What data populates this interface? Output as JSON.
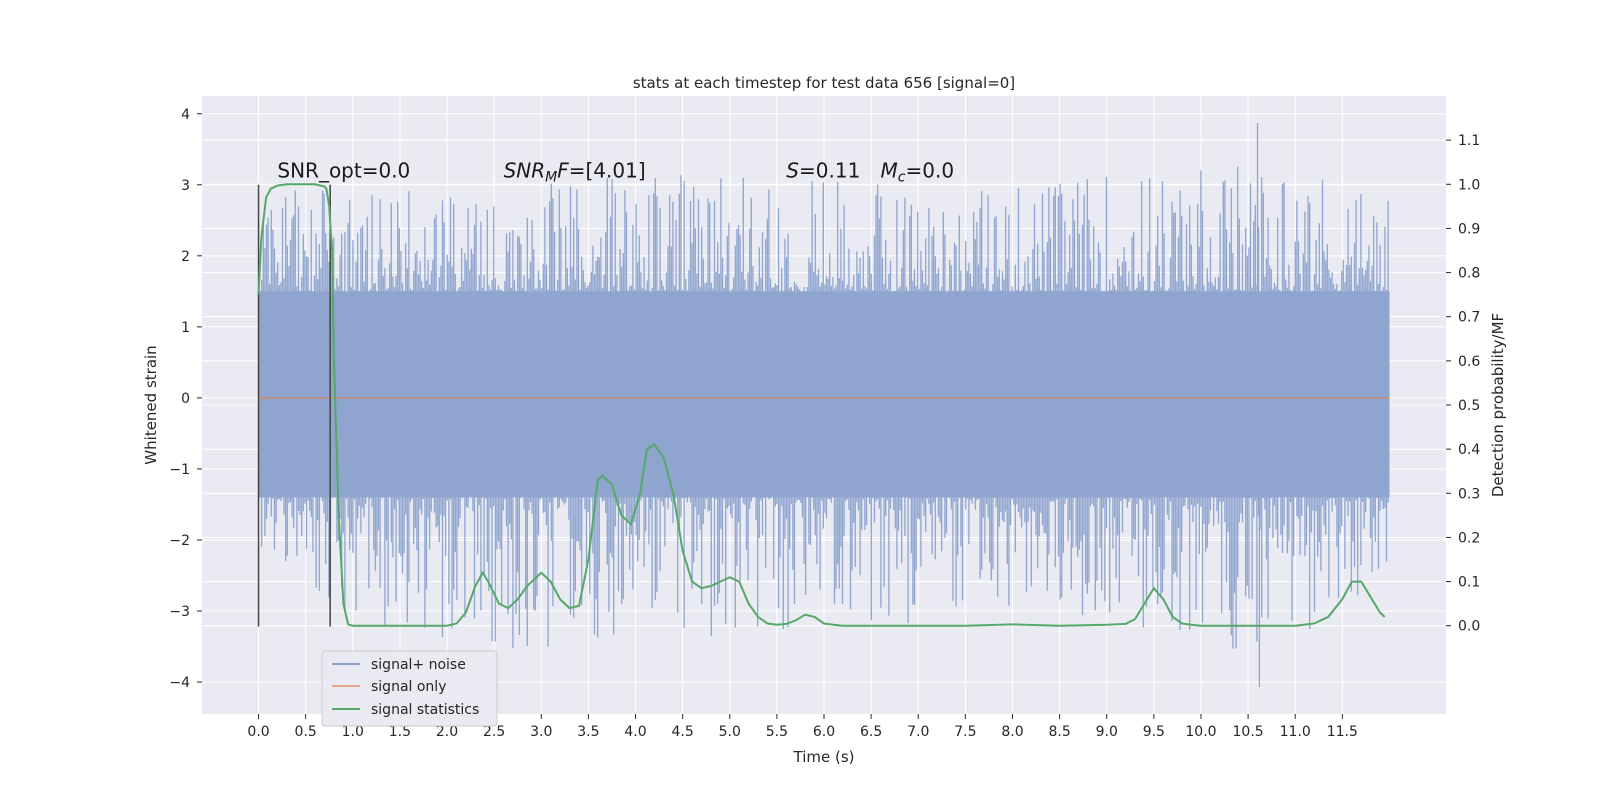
{
  "chart_data": {
    "type": "line",
    "title": "stats at each timestep for test data 656 [signal=0]",
    "xlabel": "Time (s)",
    "ylabel_left": "Whitened strain",
    "ylabel_right": "Detection probability/MF",
    "xlim": [
      -0.6,
      12.6
    ],
    "ylim_left": [
      -4.45,
      4.25
    ],
    "ylim_right": [
      -0.2,
      1.2
    ],
    "x_ticks": [
      "0.0",
      "0.5",
      "1.0",
      "1.5",
      "2.0",
      "2.5",
      "3.0",
      "3.5",
      "4.0",
      "4.5",
      "5.0",
      "5.5",
      "6.0",
      "6.5",
      "7.0",
      "7.5",
      "8.0",
      "8.5",
      "9.0",
      "9.5",
      "10.0",
      "10.5",
      "11.0",
      "11.5"
    ],
    "x_tick_values": [
      0,
      0.5,
      1,
      1.5,
      2,
      2.5,
      3,
      3.5,
      4,
      4.5,
      5,
      5.5,
      6,
      6.5,
      7,
      7.5,
      8,
      8.5,
      9,
      9.5,
      10,
      10.5,
      11,
      11.5
    ],
    "y_left_ticks": [
      "−4",
      "−3",
      "−2",
      "−1",
      "0",
      "1",
      "2",
      "3",
      "4"
    ],
    "y_left_tick_values": [
      -4,
      -3,
      -2,
      -1,
      0,
      1,
      2,
      3,
      4
    ],
    "y_right_ticks": [
      "0.0",
      "0.1",
      "0.2",
      "0.3",
      "0.4",
      "0.5",
      "0.6",
      "0.7",
      "0.8",
      "0.9",
      "1.0",
      "1.1"
    ],
    "y_right_tick_values": [
      0,
      0.1,
      0.2,
      0.3,
      0.4,
      0.5,
      0.6,
      0.7,
      0.8,
      0.9,
      1.0,
      1.1
    ],
    "grid": true,
    "legend_position": "lower-left",
    "series": [
      {
        "name": "signal+ noise",
        "axis": "left",
        "color": "#8fa5cf",
        "style": "dense noise band",
        "x_range": [
          0,
          12.0
        ],
        "typical_band": [
          -1.4,
          1.5
        ],
        "observed_max": 3.87,
        "observed_min": -4.07,
        "envelope": {
          "x": [
            0,
            1,
            2,
            3,
            4,
            5,
            6,
            7,
            8,
            9,
            10,
            11,
            12.0
          ],
          "upper": [
            3.0,
            3.0,
            3.0,
            3.1,
            3.2,
            3.1,
            3.2,
            3.0,
            3.0,
            3.2,
            3.3,
            3.4,
            2.9
          ],
          "lower": [
            -2.2,
            -3.1,
            -3.4,
            -3.6,
            -3.3,
            -3.4,
            -3.2,
            -3.2,
            -3.0,
            -3.2,
            -3.6,
            -3.5,
            -2.5
          ]
        }
      },
      {
        "name": "signal only",
        "axis": "left",
        "color": "#dd8452",
        "x": [
          0,
          12.0
        ],
        "y": [
          0,
          0
        ]
      },
      {
        "name": "signal statistics",
        "axis": "right",
        "color": "#55a868",
        "x": [
          0.0,
          0.03,
          0.08,
          0.13,
          0.2,
          0.3,
          0.4,
          0.5,
          0.6,
          0.7,
          0.72,
          0.75,
          0.78,
          0.8,
          0.85,
          0.9,
          0.95,
          1.0,
          1.2,
          1.5,
          1.8,
          2.0,
          2.1,
          2.2,
          2.3,
          2.38,
          2.45,
          2.55,
          2.65,
          2.75,
          2.85,
          2.95,
          3.0,
          3.1,
          3.2,
          3.3,
          3.4,
          3.5,
          3.6,
          3.65,
          3.75,
          3.85,
          3.95,
          4.05,
          4.12,
          4.2,
          4.3,
          4.4,
          4.5,
          4.6,
          4.7,
          4.8,
          4.9,
          5.0,
          5.1,
          5.2,
          5.3,
          5.4,
          5.5,
          5.6,
          5.7,
          5.8,
          5.9,
          6.0,
          6.1,
          6.2,
          6.5,
          7.0,
          7.5,
          8.0,
          8.5,
          9.0,
          9.2,
          9.3,
          9.4,
          9.5,
          9.6,
          9.7,
          9.8,
          9.9,
          10.0,
          10.5,
          11.0,
          11.2,
          11.35,
          11.5,
          11.6,
          11.7,
          11.8,
          11.9,
          11.95
        ],
        "y": [
          0.75,
          0.88,
          0.97,
          0.99,
          0.997,
          1.0,
          1.0,
          1.0,
          1.0,
          0.995,
          0.99,
          0.95,
          0.85,
          0.6,
          0.25,
          0.05,
          0.003,
          0.0,
          0.0,
          0.0,
          0.0,
          0.0,
          0.005,
          0.03,
          0.09,
          0.12,
          0.095,
          0.05,
          0.04,
          0.06,
          0.09,
          0.11,
          0.12,
          0.1,
          0.06,
          0.04,
          0.045,
          0.15,
          0.33,
          0.34,
          0.32,
          0.25,
          0.23,
          0.3,
          0.4,
          0.41,
          0.38,
          0.3,
          0.17,
          0.1,
          0.085,
          0.09,
          0.1,
          0.11,
          0.1,
          0.05,
          0.02,
          0.005,
          0.002,
          0.004,
          0.012,
          0.025,
          0.02,
          0.005,
          0.002,
          0.0,
          0.0,
          0.0,
          0.0,
          0.003,
          0.0,
          0.002,
          0.004,
          0.015,
          0.05,
          0.085,
          0.06,
          0.02,
          0.005,
          0.002,
          0.0,
          0.0,
          0.0,
          0.005,
          0.02,
          0.06,
          0.1,
          0.1,
          0.065,
          0.03,
          0.02
        ]
      }
    ],
    "vertical_markers": [
      {
        "x": 0.0,
        "y_from": -3.22,
        "y_to": 3.0,
        "color": "#444444"
      },
      {
        "x": 0.76,
        "y_from": -3.22,
        "y_to": 3.0,
        "color": "#444444"
      }
    ],
    "annotations": [
      {
        "id": "snr_opt",
        "plain": "SNR_opt=0.0",
        "x": 0.2,
        "y": 3.1
      },
      {
        "id": "snr_mf",
        "parts": [
          {
            "t": "SNR",
            "italic": true
          },
          {
            "t": "M",
            "italic": true,
            "sub": true
          },
          {
            "t": "F",
            "italic": true
          },
          {
            "t": "=[4.01]",
            "italic": false
          }
        ],
        "x": 2.6,
        "y": 3.1
      },
      {
        "id": "s",
        "parts": [
          {
            "t": "S",
            "italic": true
          },
          {
            "t": "=0.11",
            "italic": false
          }
        ],
        "x": 5.6,
        "y": 3.1
      },
      {
        "id": "mc",
        "parts": [
          {
            "t": "M",
            "italic": true
          },
          {
            "t": "c",
            "italic": true,
            "sub": true
          },
          {
            "t": "=0.0",
            "italic": false
          }
        ],
        "x": 6.6,
        "y": 3.1
      }
    ],
    "legend": [
      {
        "label": "signal+ noise",
        "color": "#8fa5cf"
      },
      {
        "label": "signal only",
        "color": "#e8a688"
      },
      {
        "label": "signal statistics",
        "color": "#55a868"
      }
    ],
    "colors": {
      "plot_background": "#eaeaf2",
      "grid": "#ffffff",
      "text": "#262626"
    }
  }
}
